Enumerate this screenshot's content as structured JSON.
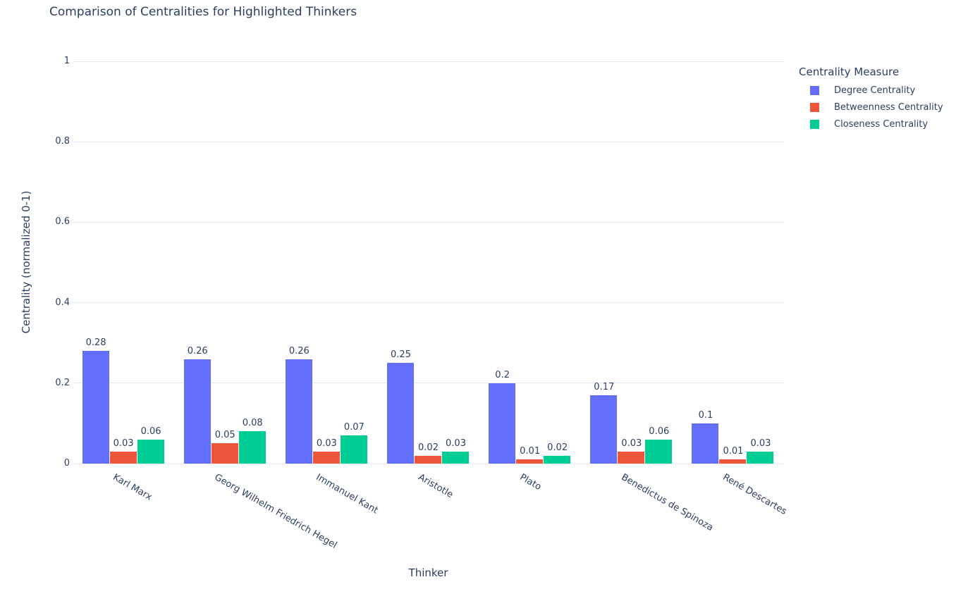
{
  "chart_data": {
    "type": "bar",
    "title": "Comparison of Centralities for Highlighted Thinkers",
    "xlabel": "Thinker",
    "ylabel": "Centrality (normalized 0-1)",
    "ylim": [
      0,
      1
    ],
    "yticks": [
      0,
      0.2,
      0.4,
      0.6,
      0.8,
      1
    ],
    "grid": true,
    "bar_value_labels": true,
    "legend": {
      "title": "Centrality Measure",
      "position": "right"
    },
    "categories": [
      "Karl Marx",
      "Georg Wilhelm Friedrich Hegel",
      "Immanuel Kant",
      "Aristotle",
      "Plato",
      "Benedictus de Spinoza",
      "René Descartes"
    ],
    "series": [
      {
        "name": "Degree Centrality",
        "color": "#636EFA",
        "values": [
          0.28,
          0.26,
          0.26,
          0.25,
          0.2,
          0.17,
          0.1
        ]
      },
      {
        "name": "Betweenness Centrality",
        "color": "#EF553B",
        "values": [
          0.03,
          0.05,
          0.03,
          0.02,
          0.01,
          0.03,
          0.01
        ]
      },
      {
        "name": "Closeness Centrality",
        "color": "#00CC96",
        "values": [
          0.06,
          0.08,
          0.07,
          0.03,
          0.02,
          0.06,
          0.03
        ]
      }
    ],
    "colors": {
      "text": "#2a3f5f",
      "grid": "#E5ECF6",
      "background": "#ffffff"
    }
  }
}
